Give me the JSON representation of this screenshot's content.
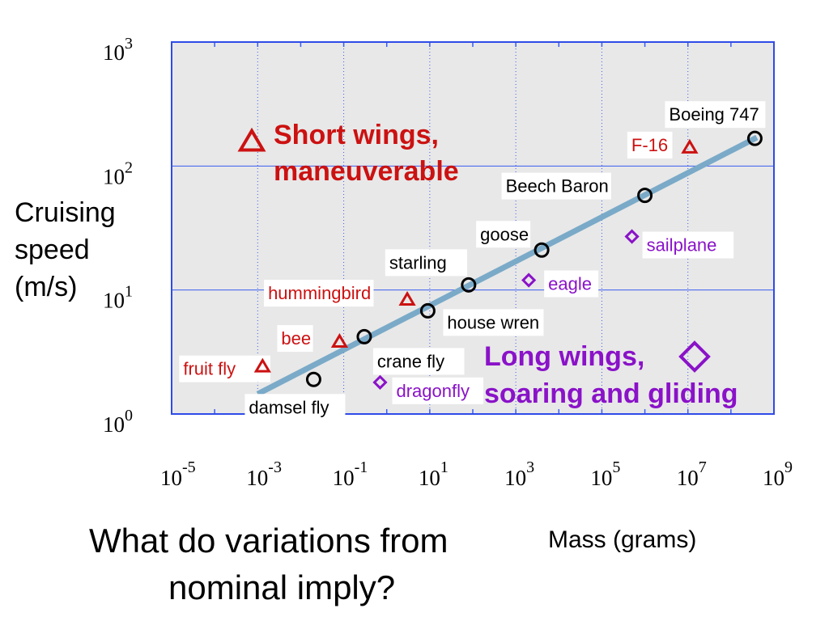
{
  "chart_data": {
    "type": "scatter",
    "x_scale": "log",
    "y_scale": "log",
    "xlabel": "Mass (grams)",
    "ylabel": [
      "Cruising",
      "speed",
      "(m/s)"
    ],
    "xlim": [
      1e-05,
      1000000000.0
    ],
    "ylim": [
      1,
      1000
    ],
    "x_ticks": [
      {
        "base": "10",
        "exp": "-5",
        "value": 1e-05
      },
      {
        "base": "10",
        "exp": "-3",
        "value": 0.001
      },
      {
        "base": "10",
        "exp": "-1",
        "value": 0.1
      },
      {
        "base": "10",
        "exp": "1",
        "value": 10
      },
      {
        "base": "10",
        "exp": "3",
        "value": 1000
      },
      {
        "base": "10",
        "exp": "5",
        "value": 100000.0
      },
      {
        "base": "10",
        "exp": "7",
        "value": 10000000.0
      },
      {
        "base": "10",
        "exp": "9",
        "value": 1000000000.0
      }
    ],
    "y_ticks": [
      {
        "base": "10",
        "exp": "0",
        "value": 1
      },
      {
        "base": "10",
        "exp": "1",
        "value": 10
      },
      {
        "base": "10",
        "exp": "2",
        "value": 100
      },
      {
        "base": "10",
        "exp": "3",
        "value": 1000
      }
    ],
    "grid": true,
    "fit_line": {
      "color": "#7aaac8",
      "x": [
        0.001,
        400000000.0
      ],
      "y": [
        1.45,
        170
      ]
    },
    "series": [
      {
        "marker": "circle",
        "color": "#000000",
        "label_color": "#000000",
        "points": [
          {
            "label": "damsel fly",
            "x": 0.02,
            "y": 1.9
          },
          {
            "label": "crane fly",
            "x": 0.3,
            "y": 4.2
          },
          {
            "label": "house wren",
            "x": 9,
            "y": 6.8
          },
          {
            "label": "starling",
            "x": 80,
            "y": 11
          },
          {
            "label": "goose",
            "x": 4000,
            "y": 21
          },
          {
            "label": "Beech Baron",
            "x": 1000000.0,
            "y": 58
          },
          {
            "label": "Boeing 747",
            "x": 360000000.0,
            "y": 167
          }
        ]
      },
      {
        "marker": "triangle",
        "color": "#cc1111",
        "label_color": "#cc1111",
        "points": [
          {
            "label": "fruit fly",
            "x": 0.0013,
            "y": 2.4
          },
          {
            "label": "bee",
            "x": 0.08,
            "y": 3.8
          },
          {
            "label": "hummingbird",
            "x": 3,
            "y": 8.3
          },
          {
            "label": "F-16",
            "x": 11000000.0,
            "y": 140
          }
        ]
      },
      {
        "marker": "diamond",
        "color": "#8a12c8",
        "label_color": "#8a12c8",
        "points": [
          {
            "label": "dragonfly",
            "x": 0.7,
            "y": 1.8
          },
          {
            "label": "eagle",
            "x": 2000,
            "y": 12
          },
          {
            "label": "sailplane",
            "x": 500000,
            "y": 27
          }
        ]
      }
    ],
    "annotations": [
      {
        "marker": "triangle",
        "color": "#cc1111",
        "lines": [
          "Short wings,",
          "maneuverable"
        ]
      },
      {
        "marker": "diamond",
        "color": "#8a12c8",
        "lines": [
          "Long wings,",
          "soaring and gliding"
        ]
      }
    ]
  },
  "question": {
    "line1": "What do variations from",
    "line2": "nominal imply?"
  }
}
